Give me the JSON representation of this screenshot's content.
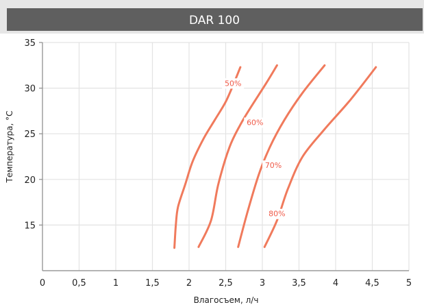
{
  "chart_data": {
    "type": "line",
    "title": "DAR 100",
    "xlabel": "Влагосъем, л/ч",
    "ylabel": "Температура, °C",
    "xlim": [
      0,
      5
    ],
    "ylim": [
      10,
      35
    ],
    "x_ticks": [
      0,
      0.5,
      1,
      1.5,
      2,
      2.5,
      3,
      3.5,
      4,
      4.5,
      5
    ],
    "x_tick_labels": [
      "0",
      "0,5",
      "1",
      "1,5",
      "2",
      "2,5",
      "3",
      "3,5",
      "4",
      "4,5",
      "5"
    ],
    "y_ticks": [
      15,
      20,
      25,
      30,
      35
    ],
    "y_tick_labels": [
      "15",
      "20",
      "25",
      "30",
      "35"
    ],
    "grid": true,
    "legend": "none",
    "colors": {
      "header_bg": "#5f5f5f",
      "header_border": "#e6e6e6",
      "line": "#f07a5c",
      "label": "#ef5a48",
      "grid": "#e3e3e3",
      "axis": "#8c8c8c",
      "tick": "#222222"
    },
    "series": [
      {
        "name": "50%",
        "label_at": [
          2.6,
          30.4
        ],
        "points": [
          [
            1.8,
            12.5
          ],
          [
            1.82,
            15
          ],
          [
            1.85,
            17
          ],
          [
            1.95,
            19.5
          ],
          [
            2.05,
            22
          ],
          [
            2.2,
            24.5
          ],
          [
            2.35,
            26.5
          ],
          [
            2.5,
            28.5
          ],
          [
            2.62,
            30.7
          ],
          [
            2.7,
            32.3
          ]
        ]
      },
      {
        "name": "60%",
        "label_at": [
          2.9,
          26.1
        ],
        "points": [
          [
            2.13,
            12.6
          ],
          [
            2.3,
            15.5
          ],
          [
            2.4,
            19.5
          ],
          [
            2.55,
            23.5
          ],
          [
            2.7,
            26
          ],
          [
            2.85,
            28
          ],
          [
            3.05,
            30.5
          ],
          [
            3.2,
            32.5
          ]
        ]
      },
      {
        "name": "70%",
        "label_at": [
          3.15,
          21.4
        ],
        "points": [
          [
            2.67,
            12.6
          ],
          [
            2.8,
            16.5
          ],
          [
            2.95,
            20.5
          ],
          [
            3.1,
            23.5
          ],
          [
            3.3,
            26.5
          ],
          [
            3.55,
            29.5
          ],
          [
            3.85,
            32.5
          ]
        ]
      },
      {
        "name": "80%",
        "label_at": [
          3.2,
          16.1
        ],
        "points": [
          [
            3.03,
            12.6
          ],
          [
            3.2,
            15.5
          ],
          [
            3.35,
            19
          ],
          [
            3.55,
            22.5
          ],
          [
            3.85,
            25.5
          ],
          [
            4.2,
            28.7
          ],
          [
            4.55,
            32.3
          ]
        ]
      }
    ]
  }
}
